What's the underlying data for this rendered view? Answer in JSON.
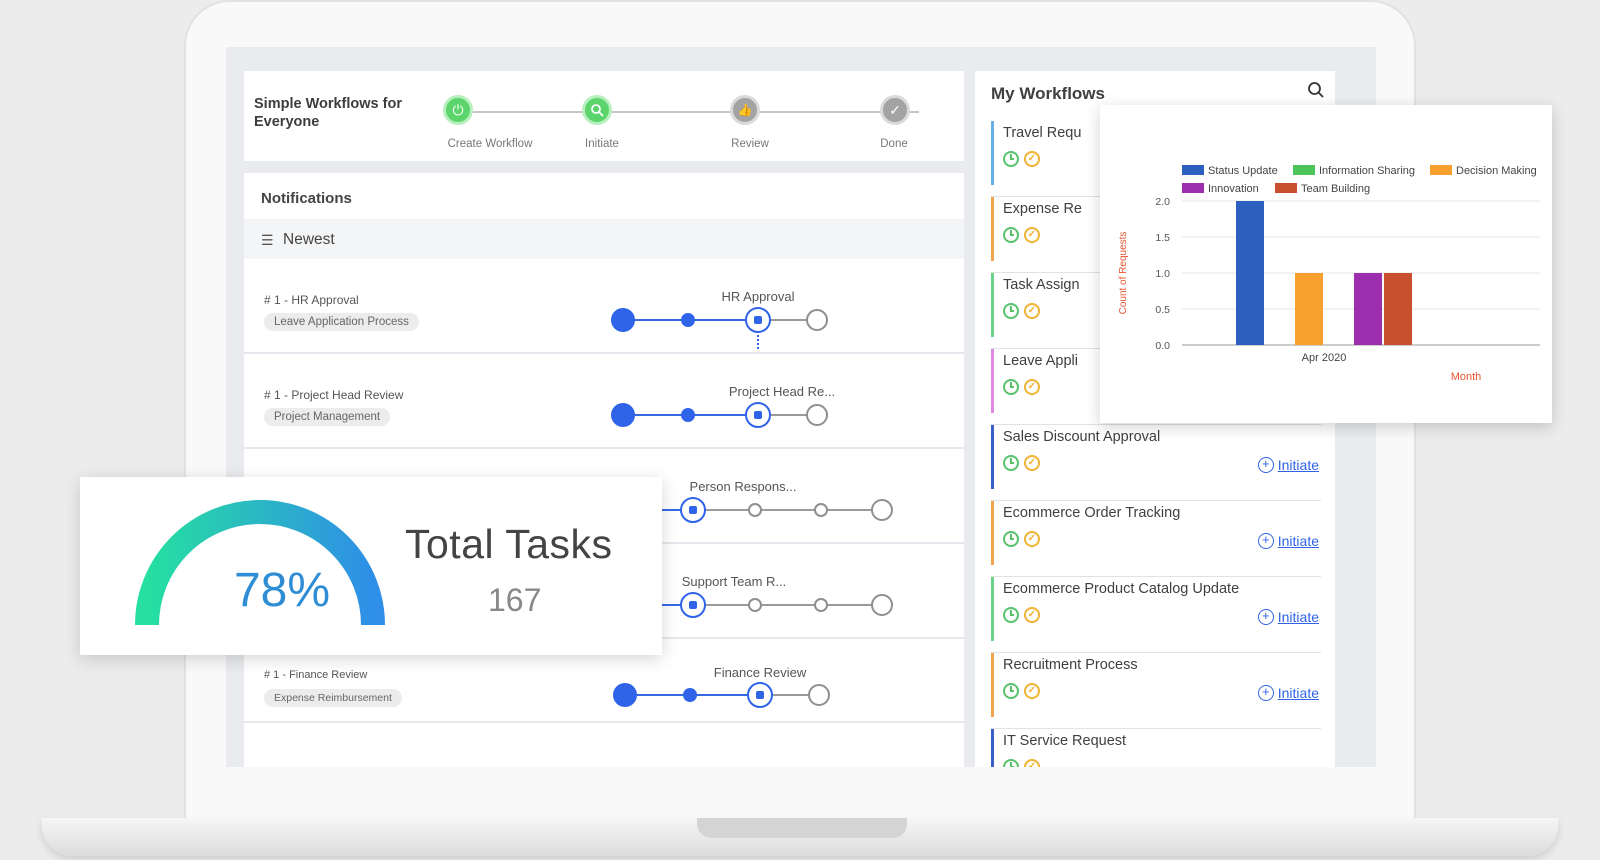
{
  "stepper": {
    "title": "Simple Workflows for Everyone",
    "steps": [
      {
        "label": "Create Workflow",
        "icon": "power-icon",
        "state": "done"
      },
      {
        "label": "Initiate",
        "icon": "search-icon",
        "state": "done"
      },
      {
        "label": "Review",
        "icon": "thumbs-up-icon",
        "state": "pending"
      },
      {
        "label": "Done",
        "icon": "check-icon",
        "state": "pending"
      }
    ]
  },
  "notifications": {
    "heading": "Notifications",
    "filter_label": "Newest",
    "rows": [
      {
        "title": "# 1 - HR Approval",
        "tag": "Leave Application Process",
        "step_label": "HR Approval"
      },
      {
        "title": "# 1 - Project Head Review",
        "tag": "Project Management",
        "step_label": "Project Head Re..."
      },
      {
        "title": "",
        "tag": "",
        "step_label": "Person Respons..."
      },
      {
        "title": "",
        "tag": "",
        "step_label": "Support Team R..."
      },
      {
        "title": "# 1 - Finance Review",
        "tag": "Expense Reimbursement",
        "step_label": "Finance Review"
      }
    ]
  },
  "workflows": {
    "heading": "My Workflows",
    "initiate_label": "Initiate",
    "items": [
      {
        "name": "Travel Requ",
        "color": "#66b2e6",
        "initiate": false
      },
      {
        "name": "Expense Re",
        "color": "#f0a44b",
        "initiate": false
      },
      {
        "name": "Task Assign",
        "color": "#6fd28a",
        "initiate": false
      },
      {
        "name": "Leave Appli",
        "color": "#e389e2",
        "initiate": false
      },
      {
        "name": "Sales Discount Approval",
        "color": "#3a5fc9",
        "initiate": true
      },
      {
        "name": "Ecommerce Order Tracking",
        "color": "#f0a44b",
        "initiate": true
      },
      {
        "name": "Ecommerce Product Catalog Update",
        "color": "#6fd28a",
        "initiate": true
      },
      {
        "name": "Recruitment Process",
        "color": "#f0a44b",
        "initiate": true
      },
      {
        "name": "IT Service Request",
        "color": "#3a5fc9",
        "initiate": false
      }
    ]
  },
  "tasks": {
    "percent_label": "78%",
    "percent": 78,
    "title": "Total Tasks",
    "count": "167",
    "gauge_colors": [
      "#25e0a0",
      "#2f8ee8"
    ]
  },
  "chart_data": {
    "type": "bar",
    "categories": [
      "Apr 2020"
    ],
    "series": [
      {
        "name": "Status Update",
        "values": [
          2
        ],
        "color": "#2d5fbf"
      },
      {
        "name": "Information Sharing",
        "values": [
          0
        ],
        "color": "#4cc45a"
      },
      {
        "name": "Decision Making",
        "values": [
          1
        ],
        "color": "#f7a030"
      },
      {
        "name": "Innovation",
        "values": [
          1
        ],
        "color": "#9b2fae"
      },
      {
        "name": "Team Building",
        "values": [
          1
        ],
        "color": "#c9502f"
      }
    ],
    "xlabel": "Month",
    "ylabel": "Count of Requests",
    "ylim": [
      0,
      2
    ],
    "yticks": [
      "0.0",
      "0.5",
      "1.0",
      "1.5",
      "2.0"
    ],
    "legend": "top",
    "grid": true
  }
}
